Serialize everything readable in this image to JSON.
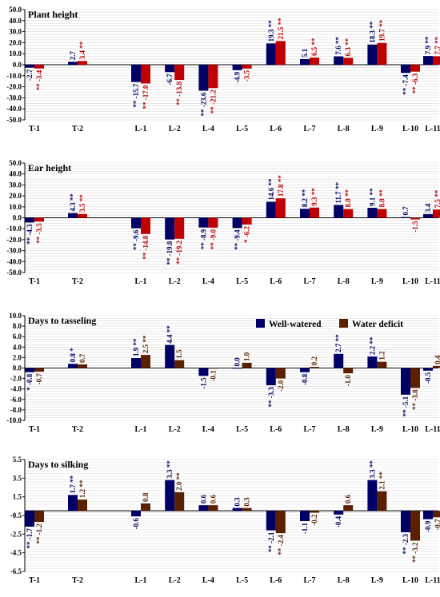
{
  "chart_data": [
    {
      "type": "bar",
      "title": "Plant height",
      "categories": [
        "T-1",
        "T-2",
        "L-1",
        "L-2",
        "L-4",
        "L-5",
        "L-6",
        "L-7",
        "L-8",
        "L-9",
        "L-10",
        "L-11"
      ],
      "ylim": [
        -50,
        50
      ],
      "yticks": [
        "50.0",
        "40.0",
        "30.0",
        "20.0",
        "10.0",
        "0.0",
        "-10.0",
        "-20.0",
        "-30.0",
        "-40.0",
        "-50.0"
      ],
      "grid": true,
      "series": [
        {
          "name": "Well-watered",
          "color": "#000066",
          "values": [
            -2.7,
            2.7,
            -15.7,
            -6.7,
            -23.6,
            -4.9,
            19.3,
            5.1,
            7.6,
            18.3,
            -7.4,
            7.9
          ],
          "labels": [
            "-2.7",
            "2.7",
            "** -15.7",
            "-6.7",
            "** -23.6",
            "-4.9",
            "19.3 **",
            "5.1",
            "7.6 **",
            "18.3 **",
            "** -7.4",
            "7.9 **"
          ]
        },
        {
          "name": "Water deficit",
          "color": "#c00000",
          "values": [
            -3.4,
            3.4,
            -17.0,
            -13.8,
            -21.2,
            -3.5,
            21.5,
            6.5,
            6.3,
            19.7,
            -6.3,
            7.7
          ],
          "labels": [
            "** -3.4",
            "3.4 **",
            "** -17.0",
            "** -13.8",
            "** -21.2",
            "-3.5",
            "21.5 **",
            "6.5 **",
            "6.3 **",
            "19.7 **",
            "** -6.3",
            "7.7 **"
          ]
        }
      ]
    },
    {
      "type": "bar",
      "title": "Ear height",
      "categories": [
        "T-1",
        "T-2",
        "L-1",
        "L-2",
        "L-4",
        "L-5",
        "L-6",
        "L-7",
        "L-8",
        "L-9",
        "L-10",
        "L-11"
      ],
      "ylim": [
        -50,
        50
      ],
      "yticks": [
        "50.0",
        "40.0",
        "30.0",
        "20.0",
        "10.0",
        "0.0",
        "-10.0",
        "-20.0",
        "-30.0",
        "-40.0",
        "-50.0"
      ],
      "grid": true,
      "series": [
        {
          "name": "Well-watered",
          "color": "#000066",
          "values": [
            -4.3,
            4.3,
            -9.6,
            -19.8,
            -8.9,
            -9.4,
            14.6,
            8.2,
            11.7,
            9.1,
            0.7,
            3.4
          ],
          "labels": [
            "** -4.3",
            "4.3 **",
            "** -9.6",
            "** -19.8",
            "** -8.9",
            "** -9.4",
            "14.6 **",
            "8.2 **",
            "11.7 **",
            "9.1 **",
            "0.7",
            "3.4"
          ]
        },
        {
          "name": "Water deficit",
          "color": "#c00000",
          "values": [
            -3.5,
            3.5,
            -14.8,
            -19.2,
            -9.0,
            -6.2,
            17.8,
            9.3,
            8.0,
            8.0,
            -1.5,
            7.5
          ],
          "labels": [
            "** -3.5",
            "3.5 **",
            "** -14.8",
            "** -19.2",
            "** -9.0",
            "* -6.2",
            "17.8 **",
            "9.3 **",
            "8.0 **",
            "8.0 **",
            "-1.5",
            "7.5 **"
          ]
        }
      ]
    },
    {
      "type": "bar",
      "title": "Days to tasseling",
      "categories": [
        "T-1",
        "T-2",
        "L-1",
        "L-2",
        "L-4",
        "L-5",
        "L-6",
        "L-7",
        "L-8",
        "L-9",
        "L-10",
        "L-11"
      ],
      "ylim": [
        -10,
        10
      ],
      "yticks": [
        "10.0",
        "8.0",
        "6.0",
        "4.0",
        "2.0",
        "0.0",
        "-2.0",
        "-4.0",
        "-6.0",
        "-8.0",
        "-10.0"
      ],
      "grid": true,
      "legend": "top-right",
      "series": [
        {
          "name": "Well-watered",
          "color": "#000066",
          "values": [
            -0.8,
            0.8,
            1.9,
            4.4,
            -1.5,
            0.0,
            -3.3,
            -0.8,
            2.7,
            2.2,
            -5.1,
            -0.5
          ],
          "labels": [
            "* -0.8",
            "0.8 *",
            "1.9 **",
            "4.4 **",
            "-1.5",
            "0.0",
            "** -3.3",
            "-0.8",
            "2.7 **",
            "2.2 **",
            "** -5.1",
            "-0.5"
          ]
        },
        {
          "name": "Water deficit",
          "color": "#5a2000",
          "values": [
            -0.7,
            0.7,
            2.5,
            1.5,
            -0.1,
            1.0,
            -2.0,
            0.2,
            -1.0,
            1.2,
            -3.8,
            0.4
          ],
          "labels": [
            "-0.7",
            "0.7",
            "2.5 **",
            "1.5",
            "-0.1",
            "1.0",
            "-2.0",
            "0.2",
            "-1.0",
            "1.2",
            "** -3.8",
            "0.4"
          ]
        }
      ]
    },
    {
      "type": "bar",
      "title": "Days to silking",
      "categories": [
        "T-1",
        "T-2",
        "L-1",
        "L-2",
        "L-4",
        "L-5",
        "L-6",
        "L-7",
        "L-8",
        "L-9",
        "L-10",
        "L-11"
      ],
      "ylim": [
        -6.5,
        5.5
      ],
      "yticks": [
        "5.5",
        "3.5",
        "1.5",
        "-0.5",
        "-2.5",
        "-4.5",
        "-6.5"
      ],
      "grid": true,
      "series": [
        {
          "name": "Well-watered",
          "color": "#000066",
          "values": [
            -1.7,
            1.7,
            -0.6,
            3.3,
            0.6,
            0.3,
            -2.1,
            -1.1,
            -0.4,
            3.3,
            -2.3,
            -0.9
          ],
          "labels": [
            "** -1.7",
            "1.7 **",
            "-0.6",
            "3.3 **",
            "0.6",
            "0.3",
            "** -2.1",
            "-1.1",
            "-0.4",
            "3.3 **",
            "** -2.3",
            "-0.9"
          ]
        },
        {
          "name": "Water deficit",
          "color": "#5a2000",
          "values": [
            -1.2,
            1.2,
            0.8,
            2.0,
            0.6,
            0.3,
            -2.4,
            -0.2,
            0.6,
            2.1,
            -3.2,
            -0.7
          ],
          "labels": [
            "** -1.2",
            "1.2 **",
            "0.8",
            "2.0 **",
            "0.6",
            "0.3",
            "** -2.4",
            "-0.2",
            "0.6",
            "2.1 **",
            "** -3.2",
            "-0.7"
          ]
        }
      ]
    }
  ]
}
